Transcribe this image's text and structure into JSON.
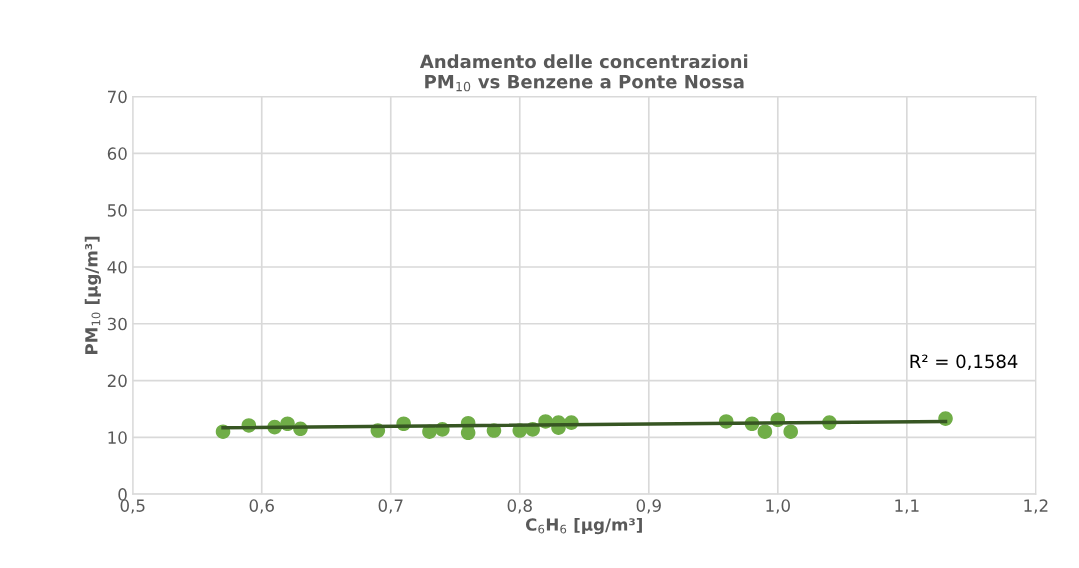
{
  "chart_data": {
    "type": "scatter",
    "title": "Andamento delle concentrazioni\nPM$_{10}$ vs Benzene a Ponte Nossa",
    "xlabel": "C$_{6}$H$_{6}$ [µg/m³]",
    "ylabel": "PM$_{10}$ [µg/m³]",
    "xlim": [
      0.5,
      1.2
    ],
    "xticks": [
      {
        "value": 0.5,
        "label": "0,5"
      },
      {
        "value": 0.6,
        "label": "0,6"
      },
      {
        "value": 0.7,
        "label": "0,7"
      },
      {
        "value": 0.8,
        "label": "0,8"
      },
      {
        "value": 0.9,
        "label": "0,9"
      },
      {
        "value": 1.0,
        "label": "1,0"
      },
      {
        "value": 1.1,
        "label": "1,1"
      },
      {
        "value": 1.2,
        "label": "1,2"
      }
    ],
    "ylim": [
      0,
      70
    ],
    "yticks": [
      0,
      10,
      20,
      30,
      40,
      50,
      60,
      70
    ],
    "grid": true,
    "series": [
      {
        "marker": "circle",
        "color": "#70ad47",
        "x": [
          0.57,
          0.59,
          0.61,
          0.62,
          0.63,
          0.69,
          0.71,
          0.73,
          0.74,
          0.76,
          0.76,
          0.78,
          0.8,
          0.81,
          0.82,
          0.83,
          0.83,
          0.84,
          0.96,
          0.98,
          0.99,
          1.0,
          1.01,
          1.04,
          1.13
        ],
        "values": [
          11.0,
          12.1,
          11.8,
          12.4,
          11.5,
          11.2,
          12.4,
          11.0,
          11.4,
          12.5,
          10.8,
          11.2,
          11.2,
          11.4,
          12.8,
          12.6,
          11.7,
          12.6,
          12.8,
          12.4,
          11.0,
          13.1,
          11.0,
          12.6,
          13.3
        ]
      },
      {
        "type": "line",
        "color": "#375623",
        "x": [
          0.57,
          1.13
        ],
        "values": [
          11.7,
          12.8
        ]
      }
    ],
    "annotations": [
      "R² = 0,1584"
    ]
  }
}
